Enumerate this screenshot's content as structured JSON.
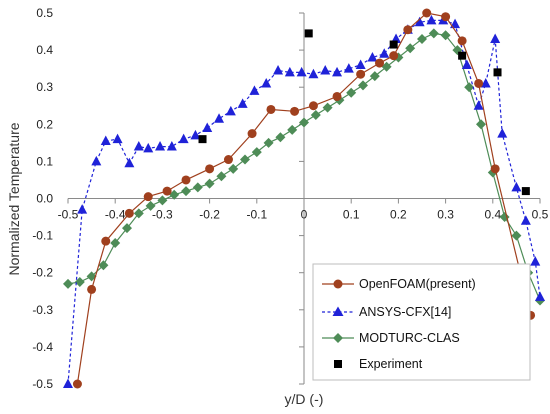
{
  "chart_data": {
    "type": "line",
    "title": "",
    "xlabel": "y/D (-)",
    "ylabel": "Normalized Temperature",
    "xlim": [
      -0.5,
      0.5
    ],
    "ylim": [
      -0.5,
      0.5
    ],
    "xticks": [
      -0.5,
      -0.4,
      -0.3,
      -0.2,
      -0.1,
      0,
      0.1,
      0.2,
      0.3,
      0.4,
      0.5
    ],
    "xtick_labels": [
      "-0.5",
      "-0.4",
      "-0.3",
      "-0.2",
      "-0.1",
      "0",
      "0.1",
      "0.2",
      "0.3",
      "0.4",
      "0.5"
    ],
    "yticks": [
      -0.5,
      -0.4,
      -0.3,
      -0.2,
      -0.1,
      0,
      0.1,
      0.2,
      0.3,
      0.4,
      0.5
    ],
    "ytick_labels": [
      "-0.5",
      "-0.4",
      "-0.3",
      "-0.2",
      "-0.1",
      "0.0",
      "0.1",
      "0.2",
      "0.3",
      "0.4",
      "0.5"
    ],
    "grid": false,
    "legend": "bottom-right",
    "series": [
      {
        "name": "OpenFOAM(present)",
        "color": "#a0401e",
        "marker": "circle",
        "line": "solid",
        "x": [
          -0.48,
          -0.45,
          -0.42,
          -0.37,
          -0.33,
          -0.29,
          -0.25,
          -0.2,
          -0.16,
          -0.11,
          -0.07,
          -0.02,
          0.02,
          0.07,
          0.12,
          0.16,
          0.19,
          0.22,
          0.26,
          0.3,
          0.335,
          0.37,
          0.405,
          0.48
        ],
        "y": [
          -0.5,
          -0.245,
          -0.115,
          -0.04,
          0.005,
          0.02,
          0.05,
          0.08,
          0.105,
          0.175,
          0.24,
          0.235,
          0.25,
          0.275,
          0.335,
          0.365,
          0.385,
          0.455,
          0.5,
          0.49,
          0.425,
          0.31,
          0.08,
          -0.315
        ]
      },
      {
        "name": "ANSYS-CFX[14]",
        "color": "#1f22d8",
        "marker": "triangle",
        "line": "dashed",
        "x": [
          -0.5,
          -0.47,
          -0.44,
          -0.42,
          -0.395,
          -0.37,
          -0.35,
          -0.33,
          -0.305,
          -0.28,
          -0.255,
          -0.23,
          -0.205,
          -0.18,
          -0.155,
          -0.13,
          -0.105,
          -0.08,
          -0.055,
          -0.03,
          -0.005,
          0.02,
          0.045,
          0.07,
          0.095,
          0.12,
          0.145,
          0.17,
          0.195,
          0.22,
          0.245,
          0.27,
          0.295,
          0.32,
          0.345,
          0.37,
          0.385,
          0.405,
          0.42,
          0.45,
          0.47,
          0.49,
          0.5
        ],
        "y": [
          -0.5,
          -0.03,
          0.1,
          0.155,
          0.16,
          0.095,
          0.14,
          0.135,
          0.14,
          0.14,
          0.16,
          0.17,
          0.19,
          0.215,
          0.235,
          0.255,
          0.29,
          0.31,
          0.345,
          0.34,
          0.34,
          0.335,
          0.345,
          0.34,
          0.35,
          0.36,
          0.38,
          0.39,
          0.43,
          0.455,
          0.475,
          0.48,
          0.48,
          0.47,
          0.36,
          0.25,
          0.31,
          0.43,
          0.175,
          0.03,
          -0.06,
          -0.17,
          -0.265
        ]
      },
      {
        "name": "MODTURC-CLAS",
        "color": "#4e8c57",
        "marker": "diamond",
        "line": "solid",
        "x": [
          -0.5,
          -0.475,
          -0.45,
          -0.425,
          -0.4,
          -0.375,
          -0.35,
          -0.325,
          -0.3,
          -0.275,
          -0.25,
          -0.225,
          -0.2,
          -0.175,
          -0.15,
          -0.125,
          -0.1,
          -0.075,
          -0.05,
          -0.025,
          0,
          0.025,
          0.05,
          0.075,
          0.1,
          0.125,
          0.15,
          0.175,
          0.2,
          0.225,
          0.25,
          0.275,
          0.3,
          0.325,
          0.35,
          0.375,
          0.4,
          0.425,
          0.45,
          0.475,
          0.5
        ],
        "y": [
          -0.23,
          -0.225,
          -0.21,
          -0.18,
          -0.12,
          -0.08,
          -0.04,
          -0.02,
          -0.005,
          0.01,
          0.02,
          0.03,
          0.04,
          0.06,
          0.08,
          0.105,
          0.125,
          0.15,
          0.165,
          0.185,
          0.205,
          0.225,
          0.245,
          0.265,
          0.285,
          0.305,
          0.33,
          0.355,
          0.38,
          0.405,
          0.43,
          0.445,
          0.44,
          0.4,
          0.3,
          0.2,
          0.07,
          -0.05,
          -0.1,
          -0.2,
          -0.275
        ]
      },
      {
        "name": "Experiment",
        "color": "#000000",
        "marker": "square",
        "line": "none",
        "x": [
          -0.215,
          0.01,
          0.19,
          0.335,
          0.41,
          0.47
        ],
        "y": [
          0.16,
          0.445,
          0.415,
          0.385,
          0.34,
          0.02
        ]
      }
    ]
  }
}
